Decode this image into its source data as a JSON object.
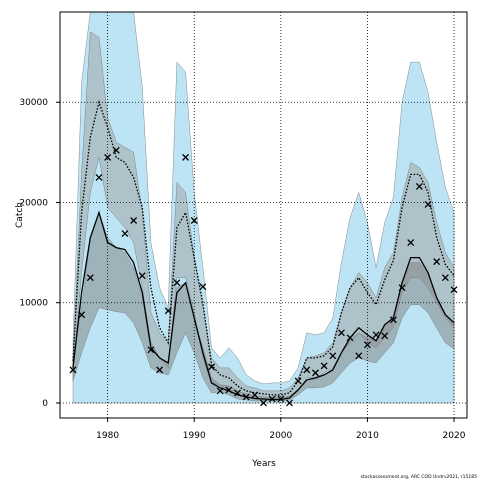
{
  "chart_data": {
    "type": "line",
    "title": "",
    "xlabel": "Years",
    "ylabel": "Catch",
    "xlim": [
      1974.5,
      2021.5
    ],
    "ylim": [
      -1500,
      39000
    ],
    "xticks": [
      1980,
      1990,
      2000,
      2010,
      2020
    ],
    "yticks": [
      0,
      10000,
      20000,
      30000
    ],
    "grid": "dotted",
    "credit": "stockassessment.org, ARC COD Undrv2021, r15185",
    "years": [
      1976,
      1977,
      1978,
      1979,
      1980,
      1981,
      1982,
      1983,
      1984,
      1985,
      1986,
      1987,
      1988,
      1989,
      1990,
      1991,
      1992,
      1993,
      1994,
      1995,
      1996,
      1997,
      1998,
      1999,
      2000,
      2001,
      2002,
      2003,
      2004,
      2005,
      2006,
      2007,
      2008,
      2009,
      2010,
      2011,
      2012,
      2013,
      2014,
      2015,
      2016,
      2017,
      2018,
      2019,
      2020
    ],
    "series": [
      {
        "kind": "band",
        "color": "#87ceeb",
        "opacity": 0.55,
        "upper": [
          6000,
          32000,
          50000,
          50000,
          50000,
          50000,
          50000,
          40000,
          31500,
          16000,
          11500,
          9500,
          34000,
          33000,
          21000,
          13500,
          5500,
          4500,
          5500,
          4500,
          2800,
          2200,
          1900,
          2000,
          2000,
          2200,
          3500,
          7000,
          6800,
          7000,
          8500,
          14000,
          18500,
          21000,
          18000,
          13500,
          18000,
          20500,
          30000,
          34000,
          34000,
          31000,
          26000,
          21500,
          19000
        ]
      },
      {
        "kind": "band",
        "color": "#a0a0a0",
        "opacity": 0.5,
        "upper": [
          4500,
          23000,
          37000,
          36500,
          28500,
          26000,
          25500,
          25000,
          19000,
          9000,
          7000,
          6000,
          22000,
          21000,
          14500,
          9500,
          4500,
          3500,
          3500,
          2500,
          1700,
          1500,
          1200,
          1200,
          1200,
          1500,
          2500,
          4500,
          4700,
          5000,
          6000,
          9000,
          11500,
          13000,
          12000,
          10500,
          13500,
          15000,
          20500,
          24000,
          23500,
          22000,
          18000,
          15000,
          13500
        ],
        "lower": [
          3000,
          13000,
          21000,
          24500,
          19500,
          18500,
          17500,
          16000,
          11500,
          6000,
          4500,
          3500,
          12500,
          12500,
          9000,
          4500,
          2000,
          1800,
          1200,
          800,
          600,
          400,
          300,
          300,
          300,
          500,
          1200,
          2500,
          2500,
          3000,
          3500,
          5000,
          6000,
          7000,
          6000,
          5500,
          6500,
          7500,
          11000,
          12500,
          12500,
          11500,
          10000,
          8500,
          7500
        ]
      },
      {
        "kind": "band",
        "color": "#808080",
        "opacity": 0.5,
        "upper": [
          4500,
          9500,
          16500,
          19000,
          16500,
          15500,
          15000,
          13500,
          10500,
          6000,
          4500,
          4000,
          11500,
          12000,
          8500,
          5500,
          2500,
          1800,
          1700,
          1200,
          900,
          700,
          600,
          500,
          500,
          700,
          1300,
          2300,
          2400,
          2800,
          3400,
          5000,
          6200,
          7000,
          6500,
          6200,
          7800,
          8500,
          12000,
          14000,
          14000,
          13000,
          10500,
          8800,
          7800
        ],
        "lower": [
          2200,
          5000,
          7500,
          9500,
          9300,
          9100,
          9000,
          8000,
          6000,
          3500,
          3000,
          2800,
          5000,
          7000,
          5000,
          2500,
          1000,
          1100,
          800,
          400,
          300,
          200,
          200,
          200,
          200,
          300,
          800,
          1500,
          1500,
          1600,
          2000,
          3000,
          4000,
          4500,
          4200,
          4000,
          5000,
          6000,
          8500,
          9800,
          9800,
          9000,
          7500,
          6000,
          5400
        ]
      },
      {
        "kind": "line",
        "color": "#000000",
        "style": "dotted",
        "values": [
          4200,
          19000,
          26500,
          30000,
          27500,
          24500,
          24000,
          22500,
          19500,
          11500,
          7500,
          6000,
          17500,
          19000,
          14500,
          10000,
          3800,
          2800,
          2500,
          1700,
          1200,
          1000,
          900,
          800,
          800,
          1000,
          2200,
          4500,
          4500,
          4700,
          5600,
          9000,
          11500,
          12500,
          11000,
          9800,
          12300,
          14200,
          19500,
          22800,
          22800,
          21000,
          16500,
          13800,
          12700
        ]
      },
      {
        "kind": "line",
        "color": "#000000",
        "style": "solid",
        "values": [
          3500,
          11000,
          16500,
          19000,
          16000,
          15500,
          15300,
          14000,
          11000,
          5500,
          4500,
          4000,
          11000,
          12000,
          8500,
          5000,
          2000,
          1500,
          1200,
          800,
          600,
          450,
          400,
          350,
          350,
          500,
          1300,
          2300,
          2500,
          2800,
          3300,
          5000,
          6500,
          7500,
          6800,
          6200,
          7800,
          8500,
          12000,
          14500,
          14500,
          13000,
          10500,
          8800,
          8000
        ]
      },
      {
        "kind": "points",
        "marker": "x",
        "color": "#000000",
        "values": [
          3300,
          8800,
          12500,
          22500,
          24500,
          25200,
          16900,
          18200,
          12700,
          5300,
          3300,
          9200,
          12000,
          24500,
          18200,
          11600,
          3600,
          1200,
          1300,
          1000,
          600,
          800,
          0,
          400,
          400,
          0,
          2200,
          3300,
          3000,
          3700,
          4700,
          7000,
          6500,
          4700,
          5800,
          6800,
          6700,
          8300,
          11500,
          16000,
          21600,
          19800,
          14100,
          12500,
          11300
        ]
      }
    ]
  }
}
